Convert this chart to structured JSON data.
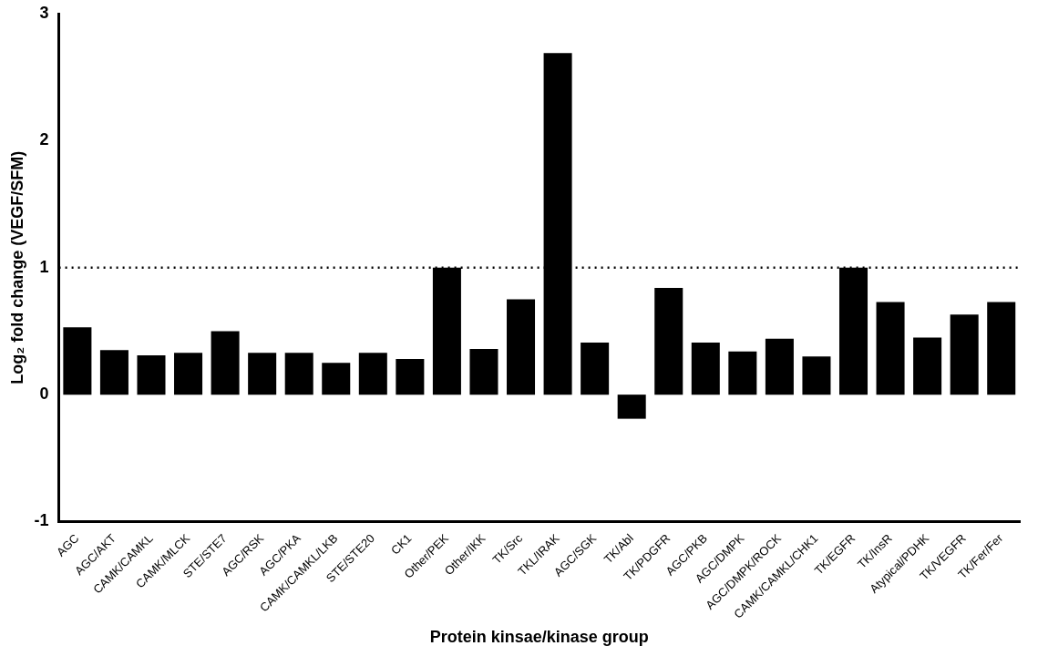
{
  "chart_data": {
    "type": "bar",
    "xlabel": "Protein kinsae/kinase group",
    "ylabel": "Log₂ fold change (VEGF/SFM)",
    "categories": [
      "AGC",
      "AGC/AKT",
      "CAMK/CAMKL",
      "CAMK/MLCK",
      "STE/STE7",
      "AGC/RSK",
      "AGC/PKA",
      "CAMK/CAMKL/LKB",
      "STE/STE20",
      "CK1",
      "Other/PEK",
      "Other/IKK",
      "TK/Src",
      "TKL/IRAK",
      "AGC/SGK",
      "TK/Abl",
      "TK/PDGFR",
      "AGC/PKB",
      "AGC/DMPK",
      "AGC/DMPK/ROCK",
      "CAMK/CAMKL/CHK1",
      "TK/EGFR",
      "TK/InsR",
      "Atypical/PDHK",
      "TK/VEGFR",
      "TK/Fer/Fer"
    ],
    "values": [
      0.53,
      0.35,
      0.31,
      0.33,
      0.5,
      0.33,
      0.33,
      0.25,
      0.33,
      0.28,
      1.0,
      0.36,
      0.75,
      2.69,
      0.41,
      -0.19,
      0.84,
      0.41,
      0.34,
      0.44,
      0.3,
      1.0,
      0.73,
      0.45,
      0.63,
      0.73
    ],
    "color": "#000000",
    "ylim": [
      -1,
      3
    ],
    "yticks": [
      -1,
      0,
      1,
      2,
      3
    ],
    "grid": false,
    "ref_lines": [
      {
        "axis": "y",
        "value": 1,
        "line_style": "dotted",
        "color": "#000000"
      }
    ]
  }
}
